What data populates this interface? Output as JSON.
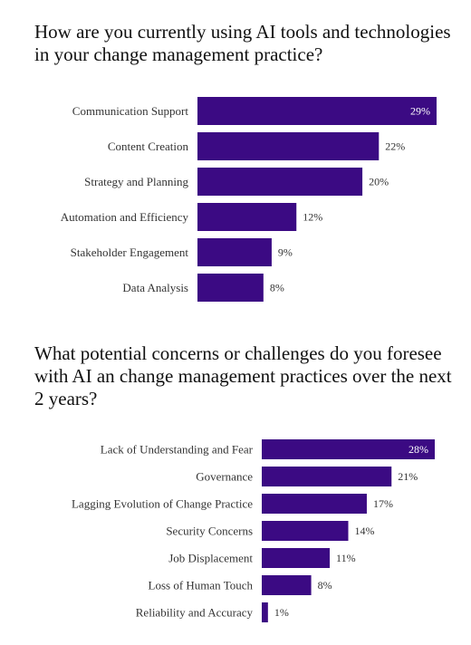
{
  "theme": {
    "bar_color": "#3b0a83",
    "text_color": "#333333",
    "background": "#ffffff"
  },
  "chart_data": [
    {
      "type": "bar",
      "orientation": "horizontal",
      "title": "How are you currently using AI tools and technologies in your change management practice?",
      "categories": [
        "Communication Support",
        "Content Creation",
        "Strategy and Planning",
        "Automation and Efficiency",
        "Stakeholder Engagement",
        "Data Analysis"
      ],
      "values": [
        29,
        22,
        20,
        12,
        9,
        8
      ],
      "value_labels": [
        "29%",
        "22%",
        "20%",
        "12%",
        "9%",
        "8%"
      ],
      "unit": "%",
      "xlim": [
        0,
        29
      ],
      "grid": false,
      "legend": "none"
    },
    {
      "type": "bar",
      "orientation": "horizontal",
      "title": "What potential concerns or challenges do you foresee with AI an change management practices over the next 2 years?",
      "categories": [
        "Lack of Understanding and Fear",
        "Governance",
        "Lagging Evolution of Change Practice",
        "Security Concerns",
        "Job Displacement",
        "Loss of Human Touch",
        "Reliability and Accuracy"
      ],
      "values": [
        28,
        21,
        17,
        14,
        11,
        8,
        1
      ],
      "value_labels": [
        "28%",
        "21%",
        "17%",
        "14%",
        "11%",
        "8%",
        "1%"
      ],
      "unit": "%",
      "xlim": [
        0,
        28
      ],
      "grid": false,
      "legend": "none"
    }
  ]
}
